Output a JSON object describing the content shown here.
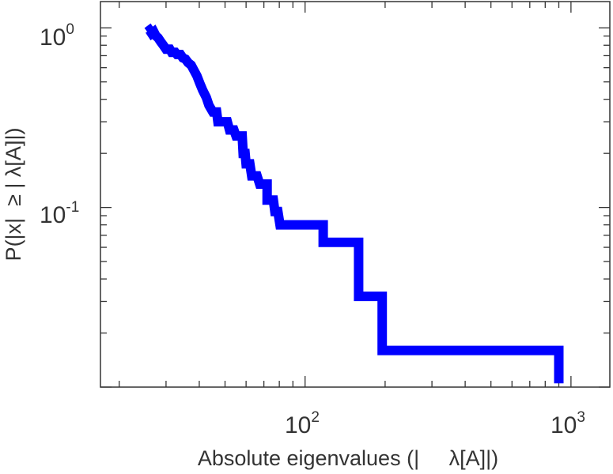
{
  "chart_data": {
    "type": "line",
    "style": "step (complementary cumulative distribution)",
    "xlabel": "Absolute eigenvalues (|     λ[A]|)",
    "ylabel": "P(|x|  ≥ | λ[A]|)",
    "xscale": "log",
    "yscale": "log",
    "xlim": [
      17,
      1400
    ],
    "ylim": [
      0.01,
      1.4
    ],
    "grid": false,
    "x_ticks": [
      {
        "base": "10",
        "exp": "2",
        "value": 100
      },
      {
        "base": "10",
        "exp": "3",
        "value": 1000
      }
    ],
    "y_ticks": [
      {
        "base": "10",
        "exp": "0",
        "value": 1
      },
      {
        "base": "10",
        "exp": "-1",
        "value": 0.1
      }
    ],
    "series": [
      {
        "color": "#0000ff",
        "points": [
          [
            25.5,
            0.95
          ],
          [
            26,
            0.97
          ],
          [
            26.5,
            0.93
          ],
          [
            27,
            0.95
          ],
          [
            27.5,
            0.9
          ],
          [
            28,
            0.88
          ],
          [
            28.6,
            0.84
          ],
          [
            29.3,
            0.8
          ],
          [
            30,
            0.76
          ],
          [
            31,
            0.76
          ],
          [
            31.5,
            0.73
          ],
          [
            32.5,
            0.73
          ],
          [
            33,
            0.71
          ],
          [
            34,
            0.71
          ],
          [
            34.7,
            0.68
          ],
          [
            35.5,
            0.67
          ],
          [
            36.3,
            0.64
          ],
          [
            37.3,
            0.62
          ],
          [
            38.2,
            0.58
          ],
          [
            39.2,
            0.54
          ],
          [
            40.2,
            0.49
          ],
          [
            41.2,
            0.45
          ],
          [
            42.5,
            0.41
          ],
          [
            43.5,
            0.37
          ],
          [
            45,
            0.34
          ],
          [
            46.5,
            0.34
          ],
          [
            47,
            0.3
          ],
          [
            51,
            0.3
          ],
          [
            52,
            0.27
          ],
          [
            54,
            0.27
          ],
          [
            55,
            0.25
          ],
          [
            58,
            0.25
          ],
          [
            58.5,
            0.2
          ],
          [
            59.5,
            0.2
          ],
          [
            60,
            0.175
          ],
          [
            62,
            0.175
          ],
          [
            63,
            0.15
          ],
          [
            66,
            0.15
          ],
          [
            67.5,
            0.135
          ],
          [
            72,
            0.135
          ],
          [
            72,
            0.11
          ],
          [
            76,
            0.11
          ],
          [
            77,
            0.095
          ],
          [
            79,
            0.095
          ],
          [
            80.5,
            0.08
          ],
          [
            117,
            0.08
          ],
          [
            117,
            0.064
          ],
          [
            159,
            0.064
          ],
          [
            159,
            0.032
          ],
          [
            195,
            0.032
          ],
          [
            195,
            0.016
          ],
          [
            900,
            0.016
          ],
          [
            900,
            0.0105
          ]
        ]
      }
    ]
  }
}
